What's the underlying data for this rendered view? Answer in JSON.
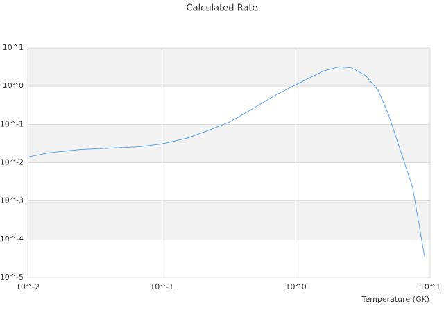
{
  "chart_data": {
    "type": "line",
    "title": "Calculated Rate",
    "x_label": "Temperature (GK)",
    "log_x": true,
    "log_y": true,
    "grid_bands": true,
    "band_color": "#f2f2f2",
    "xlim": [
      0.01,
      10
    ],
    "ylim": [
      1e-05,
      10
    ],
    "xticks": [
      {
        "value": 0.01,
        "label": "10^-2"
      },
      {
        "value": 0.1,
        "label": "10^-1"
      },
      {
        "value": 1,
        "label": "10^0"
      },
      {
        "value": 10,
        "label": "10^1"
      }
    ],
    "yticks": [
      {
        "value": 1e-05,
        "label": "10^-5"
      },
      {
        "value": 0.0001,
        "label": "10^-4"
      },
      {
        "value": 0.001,
        "label": "10^-3"
      },
      {
        "value": 0.01,
        "label": "10^-2"
      },
      {
        "value": 0.1,
        "label": "10^-1"
      },
      {
        "value": 1,
        "label": "10^0"
      },
      {
        "value": 10,
        "label": "10^1"
      }
    ],
    "x": [
      0.01,
      0.0143,
      0.0244,
      0.042,
      0.067,
      0.1,
      0.155,
      0.22,
      0.32,
      0.45,
      0.69,
      1,
      1.6,
      2.1,
      2.6,
      3.3,
      4.1,
      4.9,
      6.2,
      7.4,
      9.1
    ],
    "series": [
      {
        "color": "#5ba3e8",
        "values": [
          0.014,
          0.018,
          0.022,
          0.024,
          0.026,
          0.031,
          0.044,
          0.069,
          0.115,
          0.23,
          0.56,
          1.1,
          2.5,
          3.2,
          3.0,
          1.9,
          0.78,
          0.18,
          0.015,
          0.0023,
          3.5e-05
        ]
      }
    ]
  }
}
